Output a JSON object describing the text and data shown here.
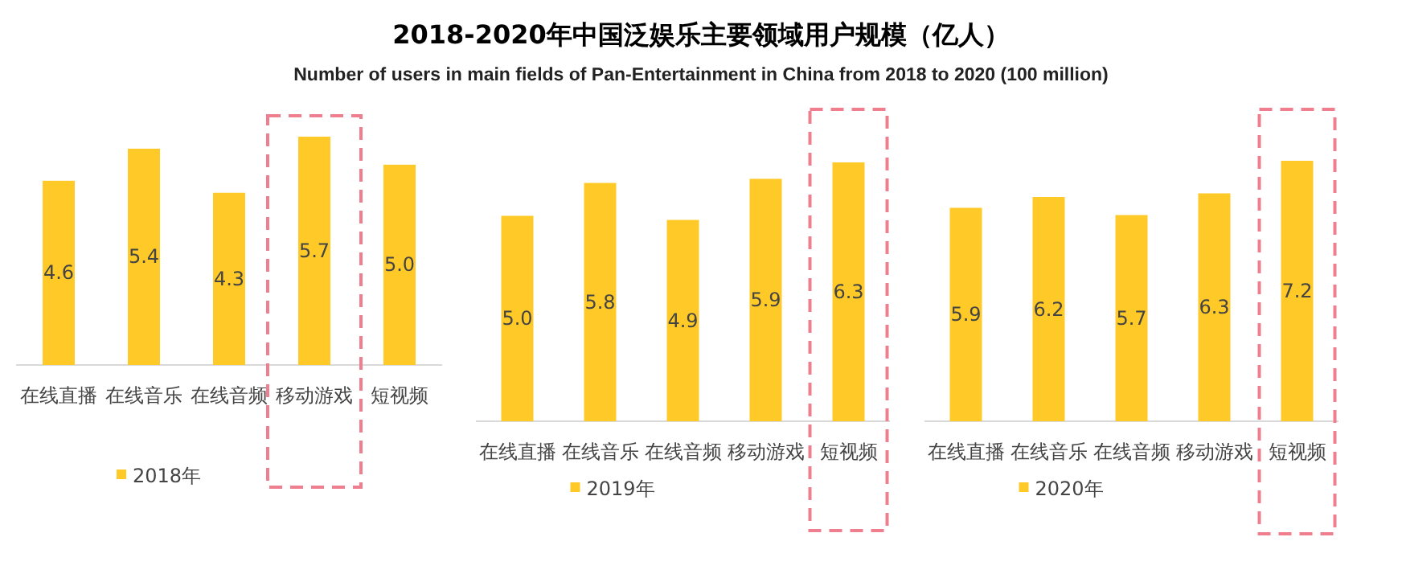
{
  "chart_data": [
    {
      "type": "bar",
      "categories": [
        "在线直播",
        "在线音乐",
        "在线音频",
        "移动游戏",
        "短视频"
      ],
      "series": [
        {
          "name": "2018年",
          "color": "#ffc928",
          "values": [
            4.6,
            5.4,
            4.3,
            5.7,
            5.0
          ],
          "value_labels": [
            "4.6",
            "5.4",
            "4.3",
            "5.7",
            "5.0"
          ]
        }
      ],
      "legend": "bottom"
    },
    {
      "type": "bar",
      "title": "2018-2020年中国泛娱乐主要领域用户规模（亿人）",
      "subtitle": "Number of users in main fields of Pan-Entertainment in China from 2018 to 2020 (100 million)",
      "categories": [
        "在线直播",
        "在线音乐",
        "在线音频",
        "移动游戏",
        "短视频"
      ],
      "series": [
        {
          "name": "2019年",
          "color": "#ffc928",
          "values": [
            5.0,
            5.8,
            4.9,
            5.9,
            6.3
          ],
          "value_labels": [
            "5.0",
            "5.8",
            "4.9",
            "5.9",
            "6.3"
          ]
        }
      ],
      "legend": "bottom"
    },
    {
      "type": "bar",
      "categories": [
        "在线直播",
        "在线音乐",
        "在线音频",
        "移动游戏",
        "短视频"
      ],
      "series": [
        {
          "name": "2020年",
          "color": "#ffc928",
          "values": [
            5.9,
            6.2,
            5.7,
            6.3,
            7.2
          ],
          "value_labels": [
            "5.9",
            "6.2",
            "5.7",
            "6.3",
            "7.2"
          ]
        }
      ],
      "legend": "bottom"
    }
  ]
}
